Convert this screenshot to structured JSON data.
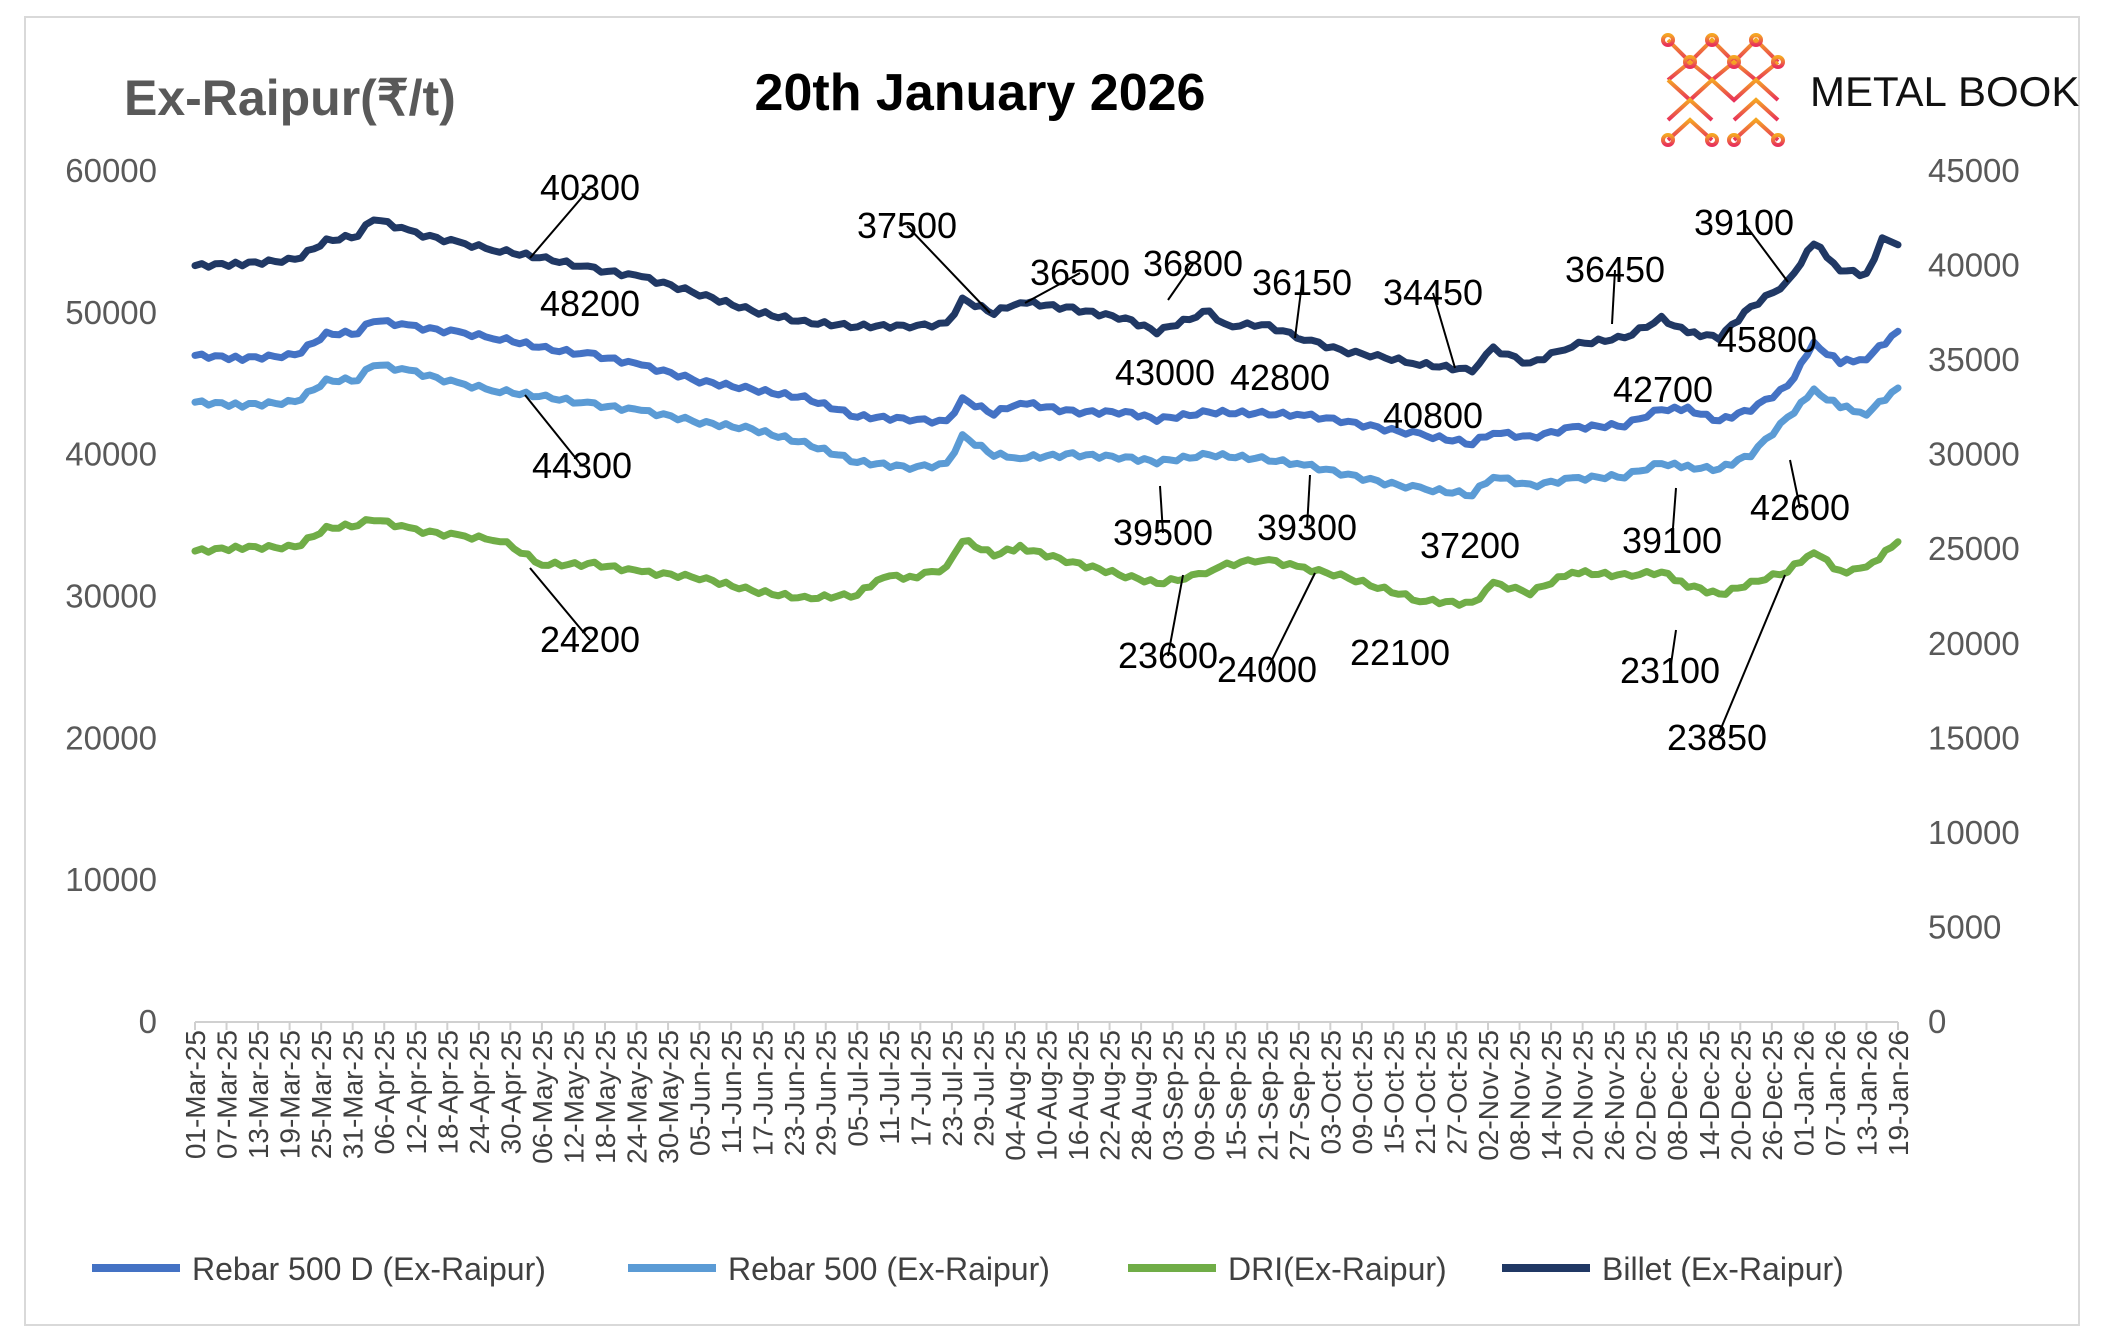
{
  "header": {
    "y_label": "Ex-Raipur(₹/t)",
    "title": "20th January 2026",
    "brand": {
      "part1": "METAL",
      "part2": "BOOK"
    }
  },
  "colors": {
    "rebar500d": "#4472c4",
    "rebar500": "#5b9bd5",
    "dri": "#70ad47",
    "billet": "#203864",
    "brand_grad_start": "#f5a623",
    "brand_grad_end": "#e8325a"
  },
  "chart_data": {
    "type": "line",
    "title": "20th January 2026",
    "ylabel": "Ex-Raipur(₹/t)",
    "ylim": [
      0,
      60000
    ],
    "y2lim": [
      0,
      45000
    ],
    "y_ticks": [
      "0",
      "10000",
      "20000",
      "30000",
      "40000",
      "50000",
      "60000"
    ],
    "y2_ticks": [
      "0",
      "5000",
      "10000",
      "15000",
      "20000",
      "25000",
      "30000",
      "35000",
      "40000",
      "45000"
    ],
    "x_start": "2025-03-01",
    "x_end": "2026-01-19",
    "x_ticks": [
      "01-Mar-25",
      "07-Mar-25",
      "13-Mar-25",
      "19-Mar-25",
      "25-Mar-25",
      "31-Mar-25",
      "06-Apr-25",
      "12-Apr-25",
      "18-Apr-25",
      "24-Apr-25",
      "30-Apr-25",
      "06-May-25",
      "12-May-25",
      "18-May-25",
      "24-May-25",
      "30-May-25",
      "05-Jun-25",
      "11-Jun-25",
      "17-Jun-25",
      "23-Jun-25",
      "29-Jun-25",
      "05-Jul-25",
      "11-Jul-25",
      "17-Jul-25",
      "23-Jul-25",
      "29-Jul-25",
      "04-Aug-25",
      "10-Aug-25",
      "16-Aug-25",
      "22-Aug-25",
      "28-Aug-25",
      "03-Sep-25",
      "09-Sep-25",
      "15-Sep-25",
      "21-Sep-25",
      "27-Sep-25",
      "03-Oct-25",
      "09-Oct-25",
      "15-Oct-25",
      "21-Oct-25",
      "27-Oct-25",
      "02-Nov-25",
      "08-Nov-25",
      "14-Nov-25",
      "20-Nov-25",
      "26-Nov-25",
      "02-Dec-25",
      "08-Dec-25",
      "14-Dec-25",
      "20-Dec-25",
      "26-Dec-25",
      "01-Jan-26",
      "07-Jan-26",
      "13-Jan-26",
      "19-Jan-26"
    ],
    "legend_position": "bottom",
    "grid": false,
    "series": [
      {
        "name": "Rebar 500 D (Ex-Raipur)",
        "axis": "left",
        "color": "#4472c4",
        "points": [
          [
            "2025-03-01",
            47000
          ],
          [
            "2025-03-10",
            46800
          ],
          [
            "2025-03-20",
            47000
          ],
          [
            "2025-03-26",
            48500
          ],
          [
            "2025-04-01",
            48600
          ],
          [
            "2025-04-04",
            49500
          ],
          [
            "2025-04-12",
            49000
          ],
          [
            "2025-04-20",
            48600
          ],
          [
            "2025-04-28",
            48200
          ],
          [
            "2025-05-08",
            47400
          ],
          [
            "2025-05-16",
            47000
          ],
          [
            "2025-05-25",
            46300
          ],
          [
            "2025-06-05",
            45200
          ],
          [
            "2025-06-15",
            44600
          ],
          [
            "2025-06-25",
            44000
          ],
          [
            "2025-07-05",
            42700
          ],
          [
            "2025-07-15",
            42500
          ],
          [
            "2025-07-22",
            42300
          ],
          [
            "2025-07-25",
            43900
          ],
          [
            "2025-07-31",
            42900
          ],
          [
            "2025-08-05",
            43700
          ],
          [
            "2025-08-15",
            43000
          ],
          [
            "2025-08-25",
            43000
          ],
          [
            "2025-08-31",
            42500
          ],
          [
            "2025-09-10",
            43000
          ],
          [
            "2025-09-20",
            42900
          ],
          [
            "2025-09-28",
            42800
          ],
          [
            "2025-10-05",
            42400
          ],
          [
            "2025-10-12",
            41900
          ],
          [
            "2025-10-20",
            41400
          ],
          [
            "2025-10-30",
            40800
          ],
          [
            "2025-11-03",
            41600
          ],
          [
            "2025-11-10",
            41200
          ],
          [
            "2025-11-18",
            41900
          ],
          [
            "2025-11-28",
            42100
          ],
          [
            "2025-12-05",
            43200
          ],
          [
            "2025-12-10",
            43200
          ],
          [
            "2025-12-16",
            42400
          ],
          [
            "2025-12-22",
            43200
          ],
          [
            "2025-12-29",
            44800
          ],
          [
            "2026-01-03",
            47800
          ],
          [
            "2026-01-08",
            46500
          ],
          [
            "2026-01-13",
            46800
          ],
          [
            "2026-01-19",
            48700
          ]
        ]
      },
      {
        "name": "Rebar 500 (Ex-Raipur)",
        "axis": "left",
        "color": "#5b9bd5",
        "points": [
          [
            "2025-03-01",
            43700
          ],
          [
            "2025-03-10",
            43500
          ],
          [
            "2025-03-20",
            43700
          ],
          [
            "2025-03-26",
            45200
          ],
          [
            "2025-04-01",
            45300
          ],
          [
            "2025-04-04",
            46400
          ],
          [
            "2025-04-12",
            45800
          ],
          [
            "2025-04-20",
            45000
          ],
          [
            "2025-04-28",
            44500
          ],
          [
            "2025-05-08",
            44000
          ],
          [
            "2025-05-16",
            43500
          ],
          [
            "2025-05-25",
            43100
          ],
          [
            "2025-06-05",
            42300
          ],
          [
            "2025-06-15",
            41800
          ],
          [
            "2025-06-25",
            40800
          ],
          [
            "2025-07-05",
            39500
          ],
          [
            "2025-07-15",
            39100
          ],
          [
            "2025-07-22",
            39300
          ],
          [
            "2025-07-25",
            41300
          ],
          [
            "2025-07-31",
            40000
          ],
          [
            "2025-08-05",
            39800
          ],
          [
            "2025-08-15",
            40000
          ],
          [
            "2025-08-25",
            39800
          ],
          [
            "2025-08-31",
            39500
          ],
          [
            "2025-09-10",
            40000
          ],
          [
            "2025-09-20",
            39700
          ],
          [
            "2025-09-28",
            39300
          ],
          [
            "2025-10-05",
            38700
          ],
          [
            "2025-10-12",
            38100
          ],
          [
            "2025-10-20",
            37600
          ],
          [
            "2025-10-30",
            37200
          ],
          [
            "2025-11-03",
            38500
          ],
          [
            "2025-11-10",
            37800
          ],
          [
            "2025-11-18",
            38300
          ],
          [
            "2025-11-28",
            38500
          ],
          [
            "2025-12-05",
            39400
          ],
          [
            "2025-12-10",
            39100
          ],
          [
            "2025-12-16",
            39000
          ],
          [
            "2025-12-22",
            40000
          ],
          [
            "2025-12-29",
            42600
          ],
          [
            "2026-01-03",
            44500
          ],
          [
            "2026-01-08",
            43400
          ],
          [
            "2026-01-13",
            42900
          ],
          [
            "2026-01-19",
            44700
          ]
        ]
      },
      {
        "name": "DRI(Ex-Raipur)",
        "axis": "right",
        "color": "#70ad47",
        "points": [
          [
            "2025-03-01",
            24900
          ],
          [
            "2025-03-10",
            25100
          ],
          [
            "2025-03-20",
            25100
          ],
          [
            "2025-03-26",
            26100
          ],
          [
            "2025-04-01",
            26300
          ],
          [
            "2025-04-04",
            26600
          ],
          [
            "2025-04-12",
            26000
          ],
          [
            "2025-04-20",
            25700
          ],
          [
            "2025-04-28",
            25500
          ],
          [
            "2025-05-06",
            24200
          ],
          [
            "2025-05-16",
            24200
          ],
          [
            "2025-05-25",
            23800
          ],
          [
            "2025-06-05",
            23500
          ],
          [
            "2025-06-15",
            22800
          ],
          [
            "2025-06-25",
            22400
          ],
          [
            "2025-07-05",
            22600
          ],
          [
            "2025-07-10",
            23600
          ],
          [
            "2025-07-15",
            23500
          ],
          [
            "2025-07-22",
            24000
          ],
          [
            "2025-07-25",
            25500
          ],
          [
            "2025-07-31",
            24700
          ],
          [
            "2025-08-05",
            25100
          ],
          [
            "2025-08-15",
            24300
          ],
          [
            "2025-08-25",
            23600
          ],
          [
            "2025-08-31",
            23200
          ],
          [
            "2025-09-08",
            23600
          ],
          [
            "2025-09-12",
            24100
          ],
          [
            "2025-09-20",
            24500
          ],
          [
            "2025-09-28",
            24000
          ],
          [
            "2025-10-05",
            23600
          ],
          [
            "2025-10-12",
            23000
          ],
          [
            "2025-10-20",
            22300
          ],
          [
            "2025-10-30",
            22100
          ],
          [
            "2025-11-03",
            23200
          ],
          [
            "2025-11-10",
            22700
          ],
          [
            "2025-11-18",
            23800
          ],
          [
            "2025-11-28",
            23600
          ],
          [
            "2025-12-05",
            23800
          ],
          [
            "2025-12-10",
            23100
          ],
          [
            "2025-12-16",
            22600
          ],
          [
            "2025-12-22",
            23200
          ],
          [
            "2025-12-29",
            23850
          ],
          [
            "2026-01-03",
            24900
          ],
          [
            "2026-01-08",
            23800
          ],
          [
            "2026-01-13",
            24000
          ],
          [
            "2026-01-19",
            25400
          ]
        ]
      },
      {
        "name": "Billet (Ex-Raipur)",
        "axis": "right",
        "color": "#203864",
        "points": [
          [
            "2025-03-01",
            40000
          ],
          [
            "2025-03-10",
            40100
          ],
          [
            "2025-03-20",
            40300
          ],
          [
            "2025-03-26",
            41300
          ],
          [
            "2025-04-01",
            41600
          ],
          [
            "2025-04-04",
            42500
          ],
          [
            "2025-04-12",
            41700
          ],
          [
            "2025-04-20",
            41200
          ],
          [
            "2025-04-28",
            40800
          ],
          [
            "2025-05-08",
            40300
          ],
          [
            "2025-05-16",
            39800
          ],
          [
            "2025-05-25",
            39400
          ],
          [
            "2025-06-05",
            38500
          ],
          [
            "2025-06-15",
            37600
          ],
          [
            "2025-06-25",
            37000
          ],
          [
            "2025-07-05",
            36800
          ],
          [
            "2025-07-15",
            36800
          ],
          [
            "2025-07-22",
            36900
          ],
          [
            "2025-07-25",
            38200
          ],
          [
            "2025-07-31",
            37500
          ],
          [
            "2025-08-05",
            38100
          ],
          [
            "2025-08-15",
            37700
          ],
          [
            "2025-08-25",
            37200
          ],
          [
            "2025-08-31",
            36500
          ],
          [
            "2025-09-10",
            37600
          ],
          [
            "2025-09-13",
            36800
          ],
          [
            "2025-09-20",
            36900
          ],
          [
            "2025-09-28",
            36150
          ],
          [
            "2025-10-05",
            35500
          ],
          [
            "2025-10-12",
            35200
          ],
          [
            "2025-10-20",
            34800
          ],
          [
            "2025-10-30",
            34450
          ],
          [
            "2025-11-03",
            35600
          ],
          [
            "2025-11-10",
            34800
          ],
          [
            "2025-11-18",
            35800
          ],
          [
            "2025-11-28",
            36200
          ],
          [
            "2025-12-05",
            37200
          ],
          [
            "2025-12-10",
            36450
          ],
          [
            "2025-12-16",
            36200
          ],
          [
            "2025-12-22",
            37800
          ],
          [
            "2025-12-29",
            39100
          ],
          [
            "2026-01-03",
            41200
          ],
          [
            "2026-01-08",
            39800
          ],
          [
            "2026-01-13",
            39500
          ],
          [
            "2026-01-16",
            41400
          ],
          [
            "2026-01-19",
            41100
          ]
        ]
      }
    ],
    "annotations": [
      {
        "text": "40300",
        "series": "Billet (Ex-Raipur)"
      },
      {
        "text": "48200",
        "series": "Rebar 500 D (Ex-Raipur)"
      },
      {
        "text": "44300",
        "series": "Rebar 500 (Ex-Raipur)"
      },
      {
        "text": "24200",
        "series": "DRI(Ex-Raipur)"
      },
      {
        "text": "37500",
        "series": "Billet (Ex-Raipur)"
      },
      {
        "text": "36500",
        "series": "Billet (Ex-Raipur)"
      },
      {
        "text": "36800",
        "series": "Billet (Ex-Raipur)"
      },
      {
        "text": "36150",
        "series": "Billet (Ex-Raipur)"
      },
      {
        "text": "34450",
        "series": "Billet (Ex-Raipur)"
      },
      {
        "text": "36450",
        "series": "Billet (Ex-Raipur)"
      },
      {
        "text": "39100",
        "series": "Billet (Ex-Raipur)"
      },
      {
        "text": "43000",
        "series": "Rebar 500 D (Ex-Raipur)"
      },
      {
        "text": "42800",
        "series": "Rebar 500 D (Ex-Raipur)"
      },
      {
        "text": "40800",
        "series": "Rebar 500 D (Ex-Raipur)"
      },
      {
        "text": "42700",
        "series": "Rebar 500 D (Ex-Raipur)"
      },
      {
        "text": "45800",
        "series": "Rebar 500 D (Ex-Raipur)"
      },
      {
        "text": "39500",
        "series": "Rebar 500 (Ex-Raipur)"
      },
      {
        "text": "39300",
        "series": "Rebar 500 (Ex-Raipur)"
      },
      {
        "text": "37200",
        "series": "Rebar 500 (Ex-Raipur)"
      },
      {
        "text": "39100",
        "series": "Rebar 500 (Ex-Raipur)"
      },
      {
        "text": "42600",
        "series": "Rebar 500 (Ex-Raipur)"
      },
      {
        "text": "23600",
        "series": "DRI(Ex-Raipur)"
      },
      {
        "text": "24000",
        "series": "DRI(Ex-Raipur)"
      },
      {
        "text": "22100",
        "series": "DRI(Ex-Raipur)"
      },
      {
        "text": "23100",
        "series": "DRI(Ex-Raipur)"
      },
      {
        "text": "23850",
        "series": "DRI(Ex-Raipur)"
      }
    ]
  }
}
